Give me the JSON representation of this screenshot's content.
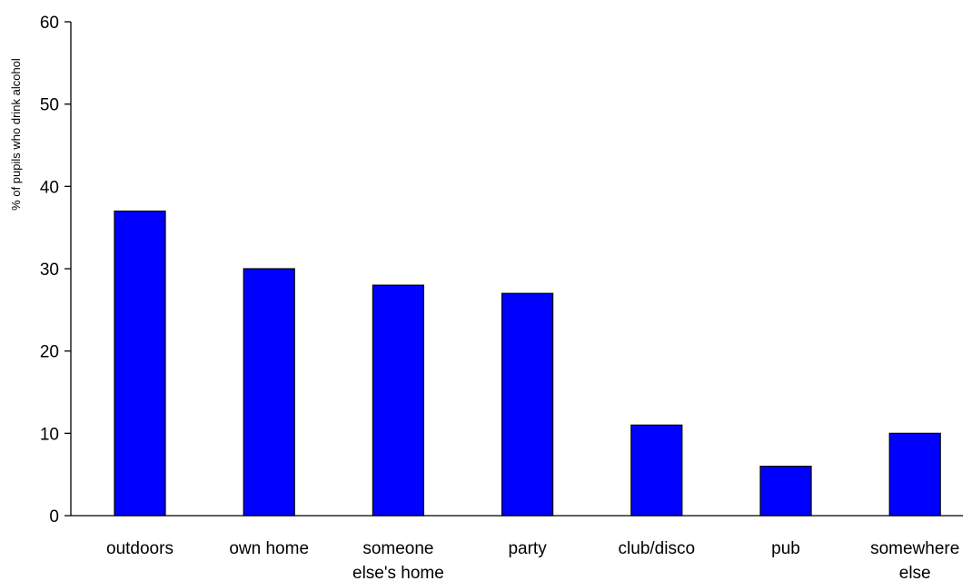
{
  "chart_data": {
    "type": "bar",
    "title": "",
    "xlabel": "",
    "ylabel": "% of pupils who drink alcohol",
    "ylim": [
      0,
      60
    ],
    "yticks": [
      0,
      10,
      20,
      30,
      40,
      50,
      60
    ],
    "grid": false,
    "categories": [
      "outdoors",
      "own home",
      "someone else's home",
      "party",
      "club/disco",
      "pub",
      "somewhere else"
    ],
    "category_lines": [
      [
        "outdoors"
      ],
      [
        "own home"
      ],
      [
        "someone",
        "else's home"
      ],
      [
        "party"
      ],
      [
        "club/disco"
      ],
      [
        "pub"
      ],
      [
        "somewhere",
        "else"
      ]
    ],
    "values": [
      37,
      30,
      28,
      27,
      11,
      6,
      10
    ],
    "bar_color": "#0000FF",
    "bar_outline_color": "#000000"
  }
}
